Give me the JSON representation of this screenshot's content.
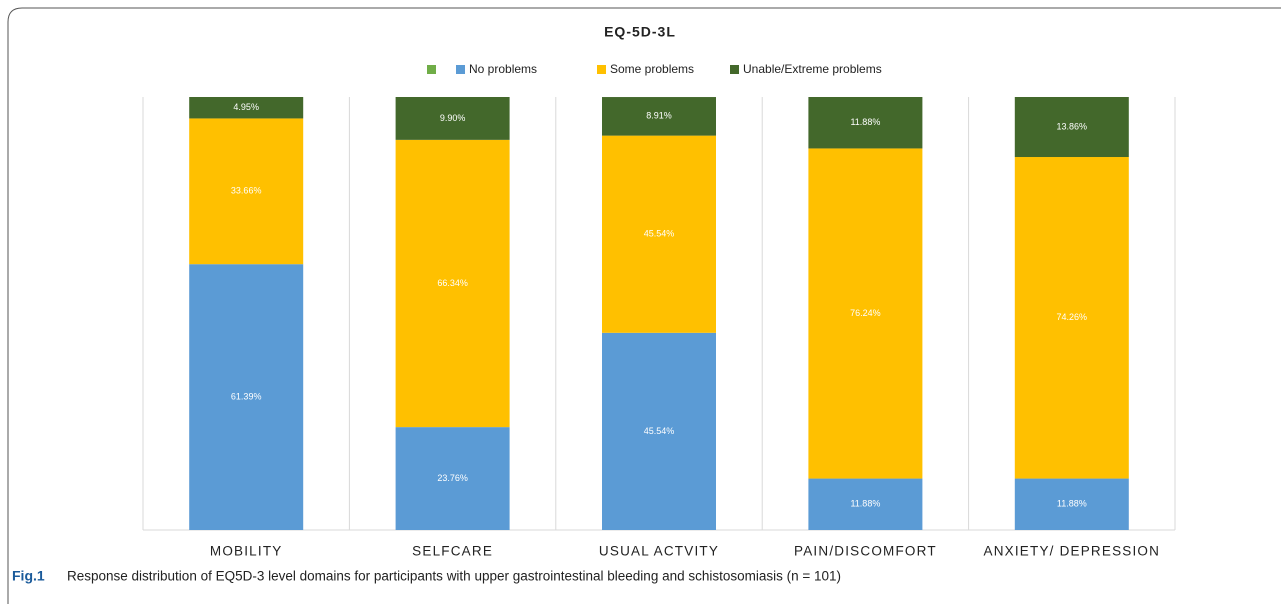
{
  "chart_data": {
    "type": "stacked_bar",
    "title": "EQ-5D-3L",
    "categories": [
      "MOBILITY",
      "SELFCARE",
      "USUAL ACTVITY",
      "PAIN/DISCOMFORT",
      "ANXIETY/ DEPRESSION"
    ],
    "series": [
      {
        "name": "No problems",
        "color": "#5b9bd5",
        "values": [
          61.39,
          23.76,
          45.54,
          11.88,
          11.88
        ],
        "value_labels": [
          "61.39%",
          "23.76%",
          "45.54%",
          "11.88%",
          "11.88%"
        ]
      },
      {
        "name": "Some problems",
        "color": "#ffc000",
        "values": [
          33.66,
          66.34,
          45.54,
          76.24,
          74.26
        ],
        "value_labels": [
          "33.66%",
          "66.34%",
          "45.54%",
          "76.24%",
          "74.26%"
        ]
      },
      {
        "name": "Unable/Extreme problems",
        "color": "#43682b",
        "values": [
          4.95,
          9.9,
          8.91,
          11.88,
          13.86
        ],
        "value_labels": [
          "4.95%",
          "9.90%",
          "8.91%",
          "11.88%",
          "13.86%"
        ]
      }
    ],
    "ylim": [
      0,
      100
    ]
  },
  "caption": {
    "label": "Fig.1",
    "text": "Response distribution of EQ5D-3 level domains for participants with upper gastrointestinal bleeding and schistosomiasis (n = 101)"
  }
}
